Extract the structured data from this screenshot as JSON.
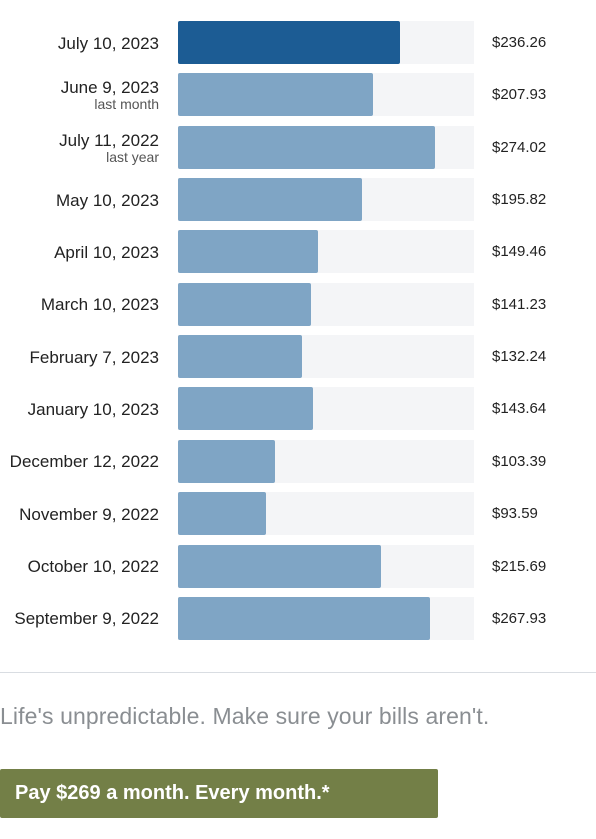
{
  "chart_data": {
    "type": "bar",
    "orientation": "horizontal",
    "categories": [
      {
        "date": "July 10, 2023",
        "sub": ""
      },
      {
        "date": "June 9, 2023",
        "sub": "last month"
      },
      {
        "date": "July 11, 2022",
        "sub": "last year"
      },
      {
        "date": "May 10, 2023",
        "sub": ""
      },
      {
        "date": "April 10, 2023",
        "sub": ""
      },
      {
        "date": "March 10, 2023",
        "sub": ""
      },
      {
        "date": "February 7, 2023",
        "sub": ""
      },
      {
        "date": "January 10, 2023",
        "sub": ""
      },
      {
        "date": "December 12, 2022",
        "sub": ""
      },
      {
        "date": "November 9, 2022",
        "sub": ""
      },
      {
        "date": "October 10, 2022",
        "sub": ""
      },
      {
        "date": "September 9, 2022",
        "sub": ""
      }
    ],
    "values": [
      236.26,
      207.93,
      274.02,
      195.82,
      149.46,
      141.23,
      132.24,
      143.64,
      103.39,
      93.59,
      215.69,
      267.93
    ],
    "value_labels": [
      "$236.26",
      "$207.93",
      "$274.02",
      "$195.82",
      "$149.46",
      "$141.23",
      "$132.24",
      "$143.64",
      "$103.39",
      "$93.59",
      "$215.69",
      "$267.93"
    ],
    "xlim": [
      0,
      315
    ],
    "highlight_index": 0,
    "colors": {
      "current": "#1c5c94",
      "other": "#7fa5c5",
      "track": "#f4f5f7"
    }
  },
  "footer": {
    "tagline": "Life's unpredictable. Make sure your bills aren't.",
    "cta_label": "Pay $269 a month. Every month.*",
    "cta_color": "#737f47"
  }
}
